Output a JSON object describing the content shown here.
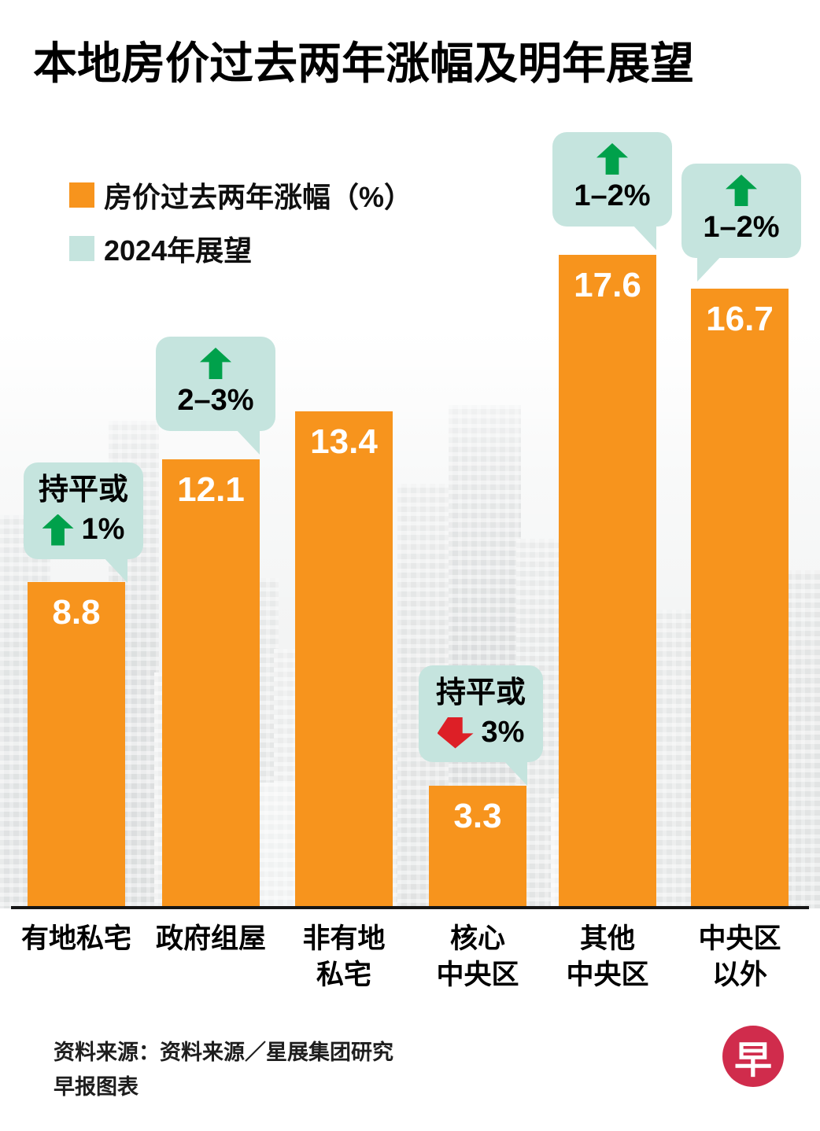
{
  "title": "本地房价过去两年涨幅及明年展望",
  "colors": {
    "bar": "#F7941D",
    "outlook_bubble": "#C5E4DE",
    "up_arrow": "#00A14B",
    "down_arrow": "#DD1F26",
    "logo": "#D02C4C"
  },
  "legend": {
    "items": [
      {
        "label": "房价过去两年涨幅（%）",
        "swatch": "#F7941D"
      },
      {
        "label": "2024年展望",
        "swatch": "#C5E4DE"
      }
    ]
  },
  "chart_data": {
    "type": "bar",
    "title": "本地房价过去两年涨幅及明年展望",
    "categories": [
      "有地私宅",
      "政府组屋",
      "非有地\n私宅",
      "核心\n中央区",
      "其他\n中央区",
      "中央区\n以外"
    ],
    "values": [
      8.8,
      12.1,
      13.4,
      3.3,
      17.6,
      16.7
    ],
    "series": [
      {
        "name": "房价过去两年涨幅（%）",
        "values": [
          8.8,
          12.1,
          13.4,
          3.3,
          17.6,
          16.7
        ]
      }
    ],
    "outlook_series_name": "2024年展望",
    "outlook_callouts": [
      {
        "prefix": "持平或",
        "direction": "up",
        "value": "1%"
      },
      {
        "prefix": "",
        "direction": "up",
        "value": "2–3%"
      },
      null,
      {
        "prefix": "持平或",
        "direction": "down",
        "value": "3%"
      },
      {
        "prefix": "",
        "direction": "up",
        "value": "1–2%"
      },
      {
        "prefix": "",
        "direction": "up",
        "value": "1–2%"
      }
    ],
    "ylim": [
      0,
      18
    ],
    "grid": false,
    "legend_position": "top-left"
  },
  "footer": {
    "source": "资料来源：资料来源／星展集团研究",
    "credit": "早报图表",
    "logo_text": "早"
  }
}
